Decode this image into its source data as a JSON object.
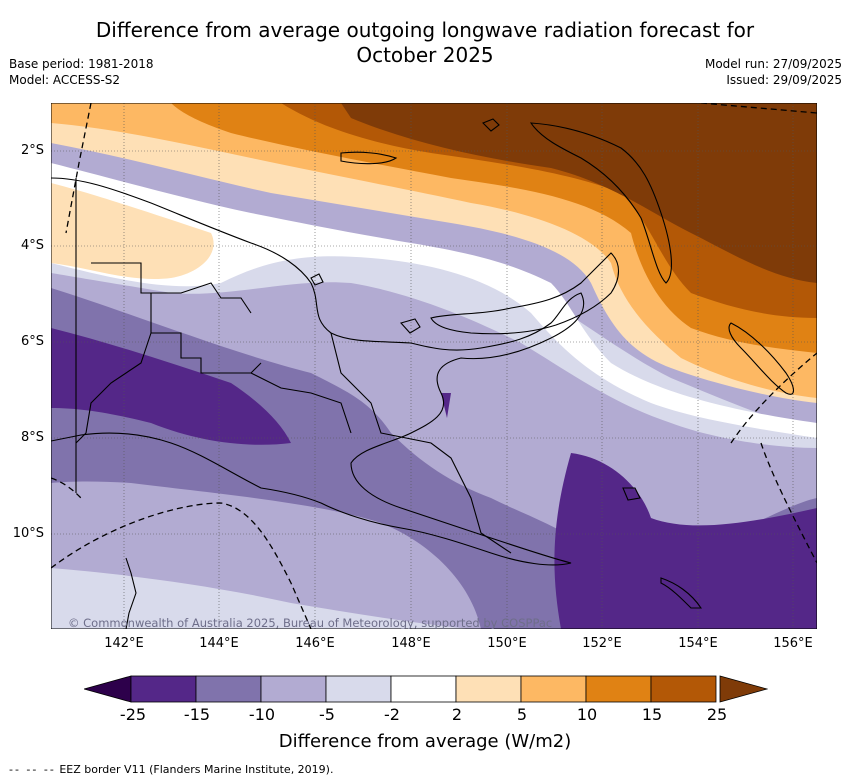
{
  "title": {
    "line1": "Difference from average outgoing longwave radiation forecast for",
    "line2": "October 2025"
  },
  "meta_left": {
    "base_period": "Base period: 1981-2018",
    "model": "Model: ACCESS-S2"
  },
  "meta_right": {
    "model_run": "Model run: 27/09/2025",
    "issued": "Issued: 29/09/2025"
  },
  "map": {
    "lat_labels": [
      "2°S",
      "4°S",
      "6°S",
      "8°S",
      "10°S"
    ],
    "lon_labels": [
      "142°E",
      "144°E",
      "146°E",
      "148°E",
      "150°E",
      "152°E",
      "154°E",
      "156°E"
    ],
    "copyright": "© Commonwealth of Australia 2025, Bureau of Meteorology, supported by COSPPac"
  },
  "colorbar": {
    "title": "Difference from average (W/m2)",
    "ticks": [
      "-25",
      "-15",
      "-10",
      "-5",
      "-2",
      "2",
      "5",
      "10",
      "15",
      "25"
    ],
    "colors": {
      "below_min": "#2d004b",
      "m25_m15": "#542788",
      "m15_m10": "#8073ac",
      "m10_m5": "#b2abd2",
      "m5_m2": "#d8daeb",
      "m2_p2": "#ffffff",
      "p2_p5": "#fee0b6",
      "p5_p10": "#fdb863",
      "p10_p15": "#e08214",
      "p15_p25": "#b35806",
      "above_max": "#7f3b08"
    }
  },
  "footnote": {
    "dash": "-- -- --",
    "text": "EEZ border V11 (Flanders Marine Institute, 2019)."
  }
}
